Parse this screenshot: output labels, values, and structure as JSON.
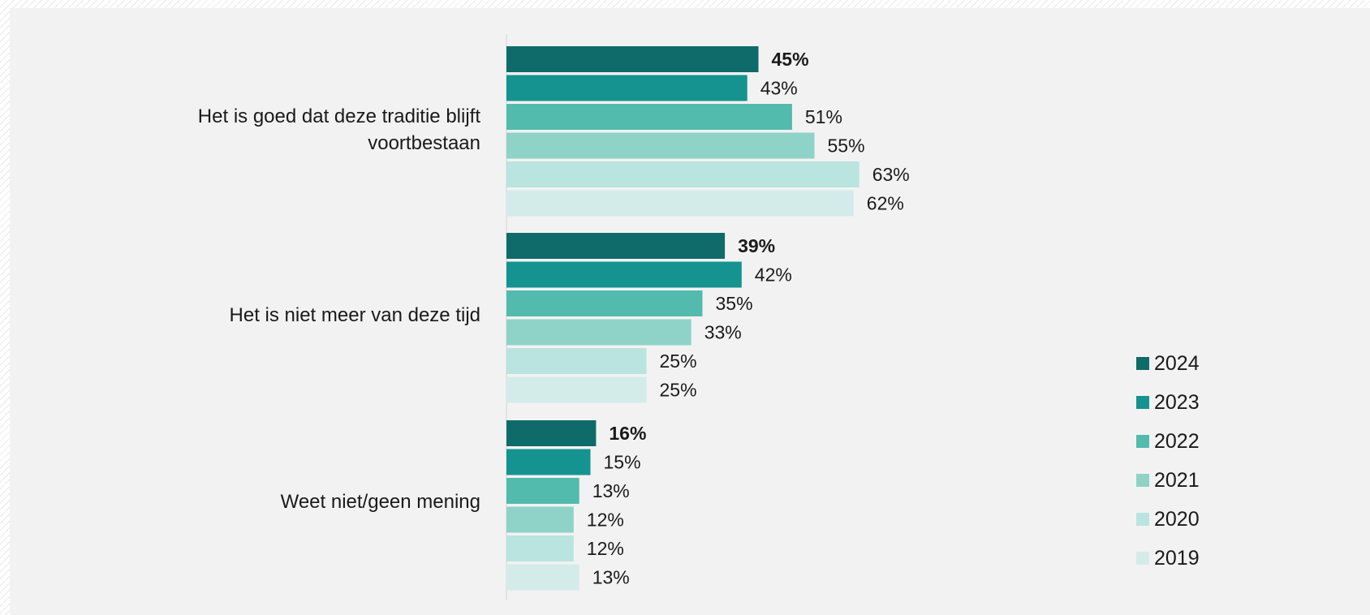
{
  "chart_data": {
    "type": "bar",
    "orientation": "horizontal",
    "categories": [
      "Het is goed dat deze traditie blijft voortbestaan",
      "Het is niet meer van deze tijd",
      "Weet niet/geen mening"
    ],
    "series": [
      {
        "name": "2024",
        "color": "#0f6b6a",
        "values": [
          45,
          39,
          16
        ],
        "labels": [
          "45%",
          "39%",
          "16%"
        ],
        "bold_labels": true
      },
      {
        "name": "2023",
        "color": "#149390",
        "values": [
          43,
          42,
          15
        ],
        "labels": [
          "43%",
          "42%",
          "15%"
        ]
      },
      {
        "name": "2022",
        "color": "#52bbad",
        "values": [
          51,
          35,
          13
        ],
        "labels": [
          "51%",
          "35%",
          "13%"
        ]
      },
      {
        "name": "2021",
        "color": "#8fd3c8",
        "values": [
          55,
          33,
          12
        ],
        "labels": [
          "55%",
          "33%",
          "12%"
        ]
      },
      {
        "name": "2020",
        "color": "#bae4df",
        "values": [
          63,
          25,
          12
        ],
        "labels": [
          "63%",
          "25%",
          "12%"
        ]
      },
      {
        "name": "2019",
        "color": "#d3ece9",
        "values": [
          62,
          25,
          13
        ],
        "labels": [
          "62%",
          "25%",
          "13%"
        ]
      }
    ],
    "value_format": "percent",
    "legend_position": "right",
    "grid": false,
    "xlim": [
      0,
      100
    ]
  },
  "category_lines": [
    [
      "Het is goed dat deze traditie blijft",
      "voortbestaan"
    ],
    [
      "Het is niet meer van deze tijd"
    ],
    [
      "Weet niet/geen mening"
    ]
  ]
}
